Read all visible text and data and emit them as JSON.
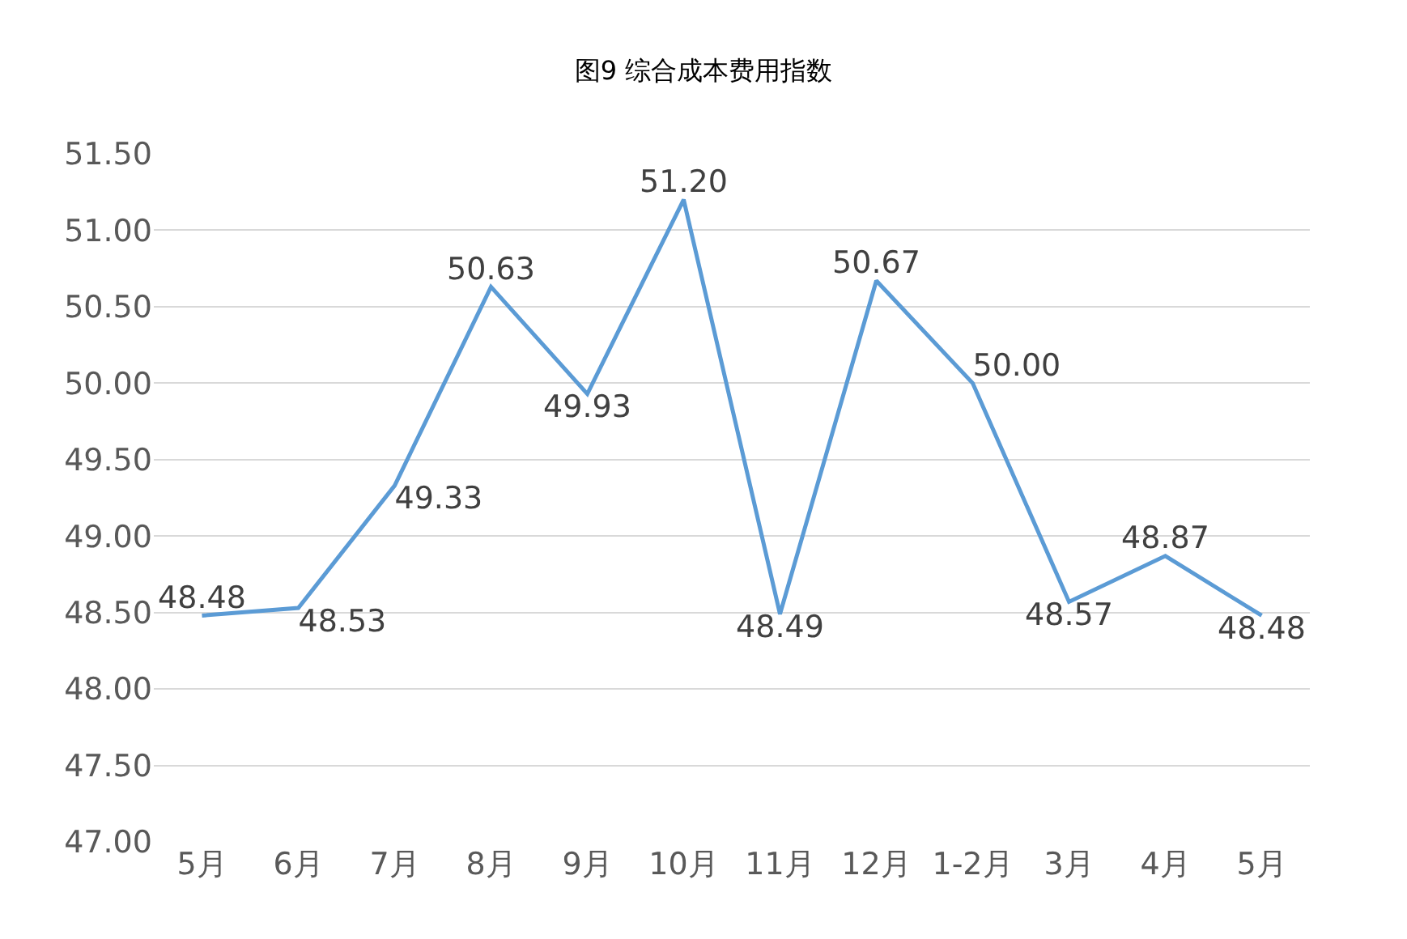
{
  "chart_data": {
    "type": "line",
    "title": "图9 综合成本费用指数",
    "categories": [
      "5月",
      "6月",
      "7月",
      "8月",
      "9月",
      "10月",
      "11月",
      "12月",
      "1-2月",
      "3月",
      "4月",
      "5月"
    ],
    "series": [
      {
        "color": "#5b9bd5",
        "values": [
          48.48,
          48.53,
          49.33,
          50.63,
          49.93,
          51.2,
          48.49,
          50.67,
          50.0,
          48.57,
          48.87,
          48.48
        ],
        "value_labels": [
          "48.48",
          "48.53",
          "49.33",
          "50.63",
          "49.93",
          "51.20",
          "48.49",
          "50.67",
          "50.00",
          "48.57",
          "48.87",
          "48.48"
        ]
      }
    ],
    "ylim": [
      47.0,
      51.5
    ],
    "yticks": [
      {
        "value": 47.0,
        "label": "47.00"
      },
      {
        "value": 47.5,
        "label": "47.50"
      },
      {
        "value": 48.0,
        "label": "48.00"
      },
      {
        "value": 48.5,
        "label": "48.50"
      },
      {
        "value": 49.0,
        "label": "49.00"
      },
      {
        "value": 49.5,
        "label": "49.50"
      },
      {
        "value": 50.0,
        "label": "50.00"
      },
      {
        "value": 50.5,
        "label": "50.50"
      },
      {
        "value": 51.0,
        "label": "51.00"
      },
      {
        "value": 51.5,
        "label": "51.50"
      }
    ],
    "grid": "y",
    "marker": "none",
    "line_style": "solid"
  }
}
